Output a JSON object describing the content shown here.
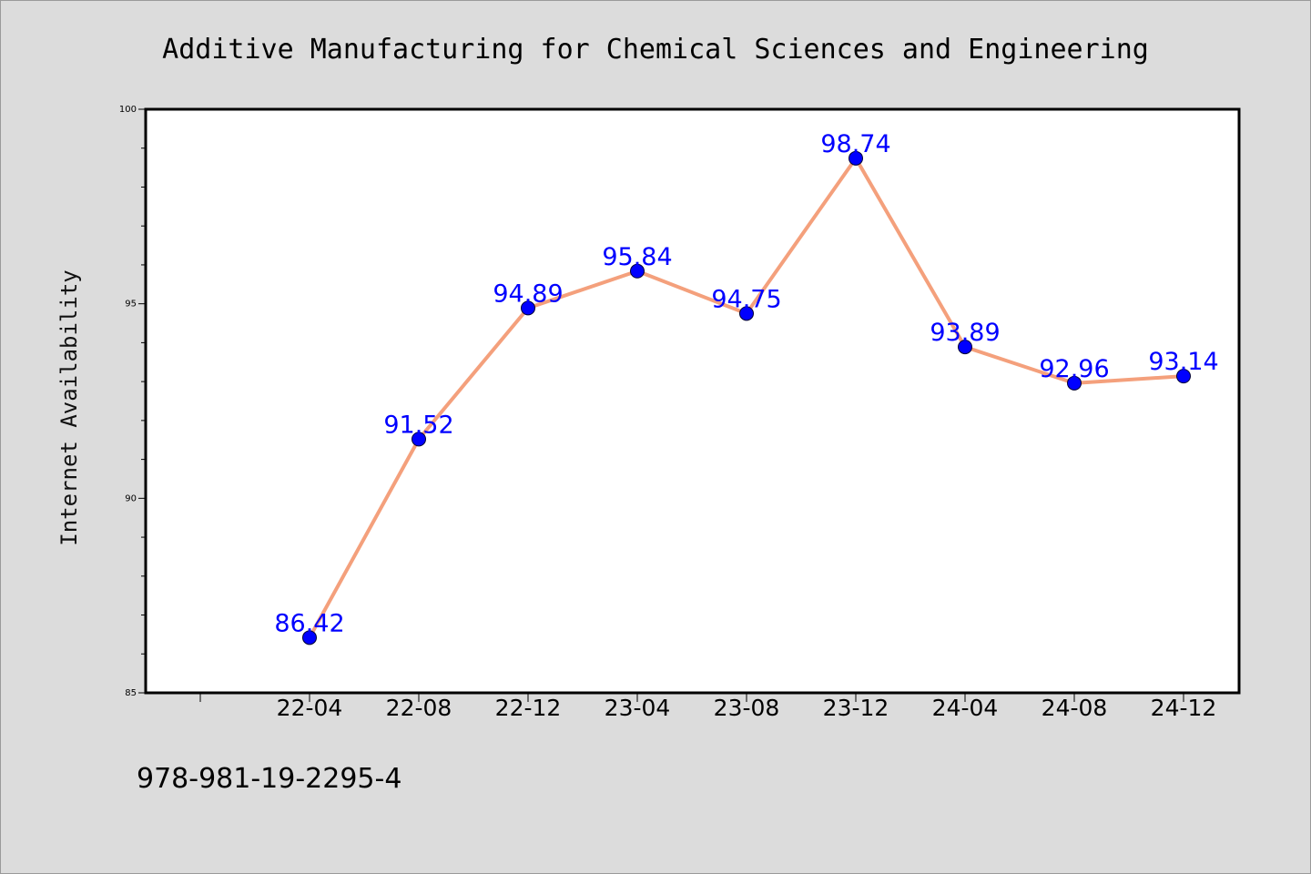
{
  "footer": {
    "isbn": "978-981-19-2295-4"
  },
  "colors": {
    "background": "#dcdcdc",
    "plot_area": "#ffffff",
    "line": "#f4a07c",
    "marker": "#0000ff",
    "data_label": "#0000ff"
  },
  "chart_data": {
    "type": "line",
    "title": "Additive Manufacturing for Chemical Sciences and Engineering",
    "xlabel": "",
    "ylabel": "Internet Availability",
    "categories": [
      "22-04",
      "22-08",
      "22-12",
      "23-04",
      "23-08",
      "23-12",
      "24-04",
      "24-08",
      "24-12"
    ],
    "series": [
      {
        "values": [
          86.42,
          91.52,
          94.89,
          95.84,
          94.75,
          98.74,
          93.89,
          92.96,
          93.14
        ]
      }
    ],
    "data_labels": [
      "86.42",
      "91.52",
      "94.89",
      "95.84",
      "94.75",
      "98.74",
      "93.89",
      "92.96",
      "93.14"
    ],
    "ylim": [
      85,
      100
    ],
    "yticks": [
      85,
      90,
      95,
      100
    ],
    "ytick_labels": [
      "85",
      "90",
      "95",
      "100"
    ],
    "grid": false,
    "legend": "none"
  }
}
